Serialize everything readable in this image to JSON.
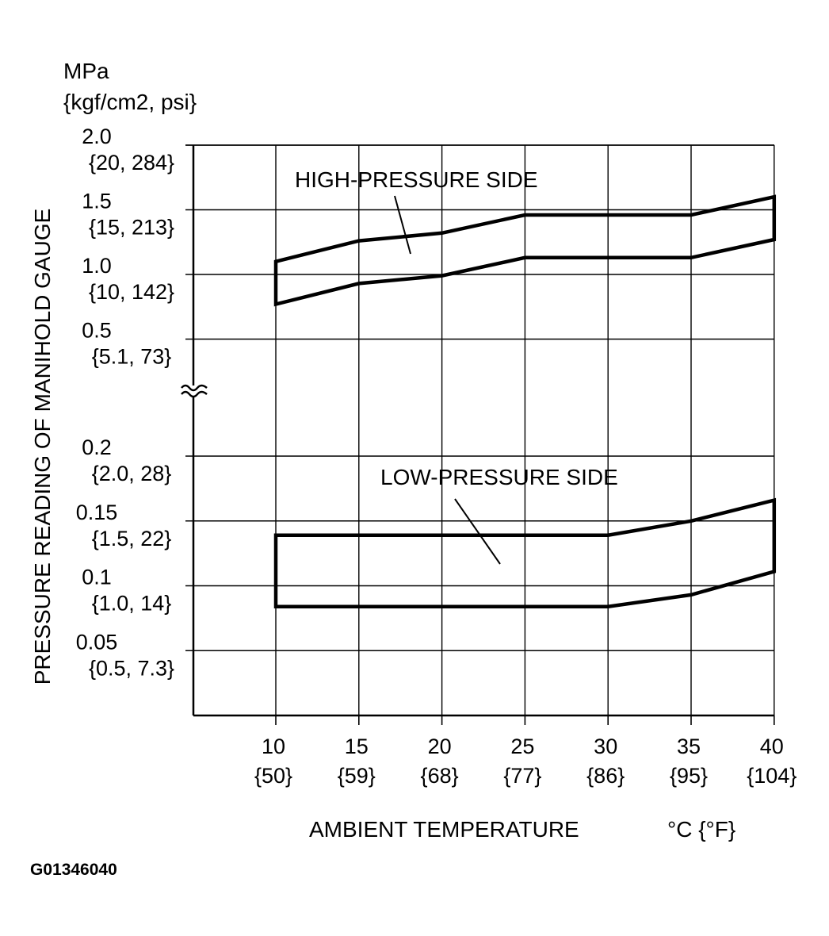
{
  "chart_data": {
    "type": "area",
    "unit_top": "MPa",
    "unit_sub": "{kgf/cm2, psi}",
    "ylabel": "PRESSURE READING OF MANIHOLD GAUGE",
    "xlabel": "AMBIENT TEMPERATURE",
    "xunit": "°C {°F}",
    "figure_code": "G01346040",
    "x_ticks": [
      {
        "c": "10",
        "f": "{50}"
      },
      {
        "c": "15",
        "f": "{59}"
      },
      {
        "c": "20",
        "f": "{68}"
      },
      {
        "c": "25",
        "f": "{77}"
      },
      {
        "c": "30",
        "f": "{86}"
      },
      {
        "c": "35",
        "f": "{95}"
      },
      {
        "c": "40",
        "f": "{104}"
      }
    ],
    "xlim": [
      5,
      40
    ],
    "upper_panel": {
      "ylim": [
        0.5,
        2.0
      ],
      "ticks": [
        {
          "v": 2.0,
          "mpa": "2.0",
          "alt": "{20, 284}"
        },
        {
          "v": 1.5,
          "mpa": "1.5",
          "alt": "{15, 213}"
        },
        {
          "v": 1.0,
          "mpa": "1.0",
          "alt": "{10, 142}"
        },
        {
          "v": 0.5,
          "mpa": "0.5",
          "alt": "{5.1, 73}"
        }
      ]
    },
    "lower_panel": {
      "ylim": [
        0.0,
        0.2
      ],
      "ticks": [
        {
          "v": 0.2,
          "mpa": "0.2",
          "alt": "{2.0, 28}"
        },
        {
          "v": 0.15,
          "mpa": "0.15",
          "alt": "{1.5, 22}"
        },
        {
          "v": 0.1,
          "mpa": "0.1",
          "alt": "{1.0, 14}"
        },
        {
          "v": 0.05,
          "mpa": "0.05",
          "alt": "{0.5, 7.3}"
        }
      ]
    },
    "series": [
      {
        "name": "HIGH-PRESSURE SIDE",
        "panel": "upper",
        "x": [
          10,
          15,
          20,
          25,
          30,
          35,
          40
        ],
        "upper": [
          1.1,
          1.26,
          1.32,
          1.46,
          1.46,
          1.46,
          1.6
        ],
        "lower": [
          0.77,
          0.93,
          0.99,
          1.13,
          1.13,
          1.13,
          1.27
        ]
      },
      {
        "name": "LOW-PRESSURE SIDE",
        "panel": "lower",
        "x": [
          10,
          15,
          20,
          25,
          30,
          35,
          40
        ],
        "upper": [
          0.139,
          0.139,
          0.139,
          0.139,
          0.139,
          0.15,
          0.166
        ],
        "lower": [
          0.084,
          0.084,
          0.084,
          0.084,
          0.084,
          0.093,
          0.111
        ]
      }
    ]
  }
}
